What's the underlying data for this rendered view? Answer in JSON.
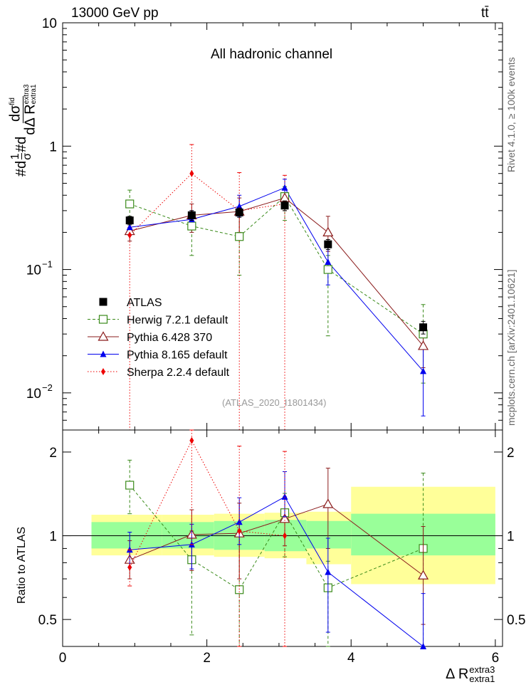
{
  "header": {
    "energy_label": "13000 GeV pp",
    "process_label": "tt̄"
  },
  "side_labels": {
    "rivet": "Rivet 4.1.0, ≥ 100k events",
    "mcplots": "mcplots.cern.ch [arXiv:2401.10621]"
  },
  "chart_data": [
    {
      "type": "scatter",
      "panel": "main",
      "title": "All hadronic channel",
      "analysis_tag": "(ATLAS_2020_I1801434)",
      "ylabel_parts": {
        "pre": "#d",
        "frac1": "1",
        "sigma": "σ",
        "mid": "#d",
        "num": "dσ",
        "num_sup": "fid",
        "den": "dΔ R",
        "den_sub": "extra1",
        "den_sup": "extra3"
      },
      "yscale": "log",
      "ylim": [
        0.005,
        10
      ],
      "xlim": [
        0,
        6.1
      ],
      "ytick_labels": [
        {
          "value": 10,
          "label": "10"
        },
        {
          "value": 1,
          "label": "1"
        },
        {
          "value": 0.1,
          "label": "10",
          "exp": "−1"
        },
        {
          "value": 0.01,
          "label": "10",
          "exp": "−2"
        }
      ],
      "legend_position": "lower-left",
      "series": [
        {
          "name": "ATLAS",
          "marker": "square-filled",
          "color": "#000000",
          "style": "markers",
          "x": [
            0.93,
            1.79,
            2.45,
            3.08,
            3.68,
            5.0
          ],
          "y": [
            0.25,
            0.275,
            0.29,
            0.33,
            0.16,
            0.034
          ],
          "yerr": [
            [
              0.02,
              0.025,
              0.025,
              0.03,
              0.015,
              0.004
            ]
          ]
        },
        {
          "name": "Herwig 7.2.1 default",
          "marker": "square-open",
          "color": "#3a8a1a",
          "style": "dashed",
          "x": [
            0.93,
            1.79,
            2.45,
            3.08,
            3.68,
            5.0
          ],
          "y": [
            0.34,
            0.225,
            0.185,
            0.39,
            0.1,
            0.03
          ],
          "ylow": [
            0.2,
            0.13,
            0.09,
            0.25,
            0.029,
            0.012
          ],
          "yhigh": [
            0.44,
            0.28,
            0.3,
            0.47,
            0.13,
            0.052
          ]
        },
        {
          "name": "Pythia 6.428 370",
          "marker": "triangle-open",
          "color": "#8b1c1c",
          "style": "solid",
          "x": [
            0.93,
            1.79,
            2.45,
            3.08,
            3.68,
            5.0
          ],
          "y": [
            0.205,
            0.275,
            0.295,
            0.38,
            0.2,
            0.024
          ],
          "ylow": [
            0.17,
            0.2,
            0.2,
            0.3,
            0.14,
            0.016
          ],
          "yhigh": [
            0.24,
            0.34,
            0.38,
            0.45,
            0.27,
            0.033
          ]
        },
        {
          "name": "Pythia 8.165 default",
          "marker": "triangle-filled",
          "color": "#0000ee",
          "style": "solid",
          "x": [
            0.93,
            1.79,
            2.45,
            3.08,
            3.68,
            5.0
          ],
          "y": [
            0.22,
            0.255,
            0.325,
            0.46,
            0.115,
            0.015
          ],
          "ylow": [
            0.19,
            0.21,
            0.27,
            0.39,
            0.075,
            0.0065
          ],
          "yhigh": [
            0.25,
            0.3,
            0.4,
            0.54,
            0.16,
            0.024
          ]
        },
        {
          "name": "Sherpa 2.2.4 default",
          "marker": "diamond-filled",
          "color": "#ee0000",
          "style": "dotted",
          "x": [
            0.93,
            1.79,
            2.45,
            3.08
          ],
          "y": [
            0.19,
            0.6,
            0.3,
            0.34
          ],
          "ylow": [
            0.0001,
            0.25,
            0.0001,
            0.0001
          ],
          "yhigh": [
            0.22,
            1.03,
            0.61,
            0.58
          ]
        }
      ]
    },
    {
      "type": "scatter",
      "panel": "ratio",
      "ylabel": "Ratio to ATLAS",
      "xlabel": "Δ R",
      "xlabel_sup": "extra3",
      "xlabel_sub": "extra1",
      "yscale": "log",
      "ylim": [
        0.4,
        2.4
      ],
      "xlim": [
        0,
        6.1
      ],
      "xticks": [
        0,
        2,
        4,
        6
      ],
      "ytick_labels": [
        {
          "value": 0.5,
          "label": "0.5"
        },
        {
          "value": 1,
          "label": "1"
        },
        {
          "value": 2,
          "label": "2"
        }
      ],
      "bands": {
        "bins": [
          [
            0.4,
            1.38
          ],
          [
            1.38,
            2.1
          ],
          [
            2.1,
            2.8
          ],
          [
            2.8,
            3.38
          ],
          [
            3.38,
            4.0
          ],
          [
            4.0,
            6.0
          ]
        ],
        "stat": [
          [
            0.9,
            1.12
          ],
          [
            0.9,
            1.12
          ],
          [
            0.89,
            1.13
          ],
          [
            0.88,
            1.14
          ],
          [
            0.9,
            1.13
          ],
          [
            0.85,
            1.2
          ]
        ],
        "total": [
          [
            0.85,
            1.19
          ],
          [
            0.85,
            1.19
          ],
          [
            0.84,
            1.2
          ],
          [
            0.83,
            1.21
          ],
          [
            0.79,
            1.22
          ],
          [
            0.67,
            1.5
          ]
        ],
        "stat_color": "#99ff99",
        "total_color": "#ffff99"
      },
      "series": [
        {
          "name": "Herwig 7.2.1 default",
          "color": "#3a8a1a",
          "x": [
            0.93,
            1.79,
            2.45,
            3.08,
            3.68,
            5.0
          ],
          "y": [
            1.52,
            0.82,
            0.64,
            1.21,
            0.65,
            0.9
          ],
          "ylow": [
            1.2,
            0.44,
            0.3,
            0.84,
            0.2,
            0.38
          ],
          "yhigh": [
            1.87,
            1.04,
            1.05,
            1.42,
            0.81,
            1.68
          ]
        },
        {
          "name": "Pythia 6.428 370",
          "color": "#8b1c1c",
          "x": [
            0.93,
            1.79,
            2.45,
            3.08,
            3.68,
            5.0
          ],
          "y": [
            0.82,
            1.01,
            1.02,
            1.15,
            1.3,
            0.72
          ],
          "ylow": [
            0.7,
            0.75,
            0.7,
            0.92,
            0.9,
            0.48
          ],
          "yhigh": [
            0.96,
            1.24,
            1.31,
            1.38,
            1.75,
            1.08
          ]
        },
        {
          "name": "Pythia 8.165 default",
          "color": "#0000ee",
          "x": [
            0.93,
            1.79,
            2.45,
            3.08,
            3.68,
            5.0
          ],
          "y": [
            0.89,
            0.93,
            1.12,
            1.38,
            0.74,
            0.4
          ],
          "ylow": [
            0.77,
            0.76,
            0.93,
            1.17,
            0.45,
            0.2
          ],
          "yhigh": [
            1.03,
            1.1,
            1.37,
            1.7,
            0.98,
            0.62
          ]
        },
        {
          "name": "Sherpa 2.2.4 default",
          "color": "#ee0000",
          "x": [
            0.93,
            1.79,
            2.45,
            3.08
          ],
          "y": [
            0.77,
            2.2,
            1.04,
            1.0
          ],
          "ylow": [
            0.66,
            0.93,
            0.0001,
            0.0001
          ],
          "yhigh": [
            0.89,
            3.7,
            2.1,
            2.01
          ]
        }
      ]
    }
  ]
}
